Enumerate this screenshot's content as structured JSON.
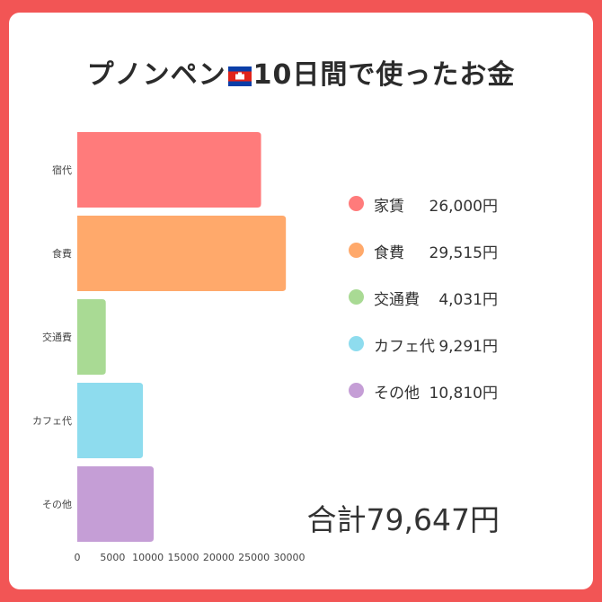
{
  "title": {
    "before_flag": "プノンペン",
    "after_flag": "10日間で使ったお金"
  },
  "flag_icon": "cambodia-flag-icon",
  "chart_data": {
    "type": "bar",
    "orientation": "horizontal",
    "categories": [
      "宿代",
      "食費",
      "交通費",
      "カフェ代",
      "その他"
    ],
    "values": [
      26000,
      29515,
      4031,
      9291,
      10810
    ],
    "colors": [
      "#ff7b7b",
      "#ffa96b",
      "#a9da94",
      "#8edcee",
      "#c59ed6"
    ],
    "xlim": [
      0,
      30000
    ],
    "xticks": [
      "0",
      "5000",
      "10000",
      "15000",
      "20000",
      "25000",
      "30000"
    ],
    "title": "",
    "xlabel": "",
    "ylabel": ""
  },
  "legend": [
    {
      "name": "家賃",
      "value": "26,000円",
      "color": "#ff7b7b"
    },
    {
      "name": "食費",
      "value": "29,515円",
      "color": "#ffa96b"
    },
    {
      "name": "交通費",
      "value": "4,031円",
      "color": "#a9da94"
    },
    {
      "name": "カフェ代",
      "value": "9,291円",
      "color": "#8edcee"
    },
    {
      "name": "その他",
      "value": "10,810円",
      "color": "#c59ed6"
    }
  ],
  "total": "合計79,647円",
  "colors": {
    "background": "#f25555",
    "card": "#ffffff"
  }
}
